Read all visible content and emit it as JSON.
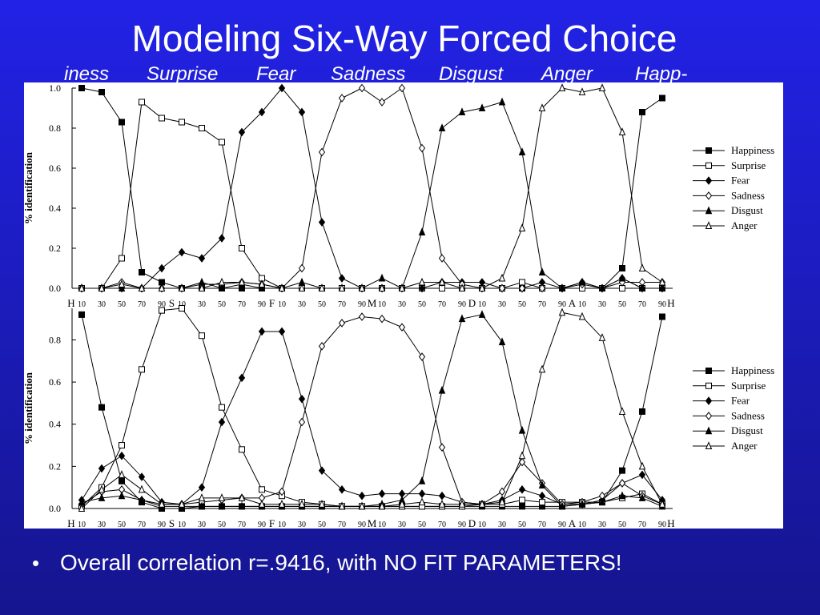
{
  "slide_title": "Modeling Six-Way Forced Choice",
  "header_labels": [
    "iness",
    "Surprise",
    "Fear",
    "Sadness",
    "Disgust",
    "Anger",
    "Happ-"
  ],
  "bullet": "Overall correlation r=.9416, with NO FIT PARAMETERS!",
  "chart_data": [
    {
      "type": "line",
      "y_label": "% identification",
      "categories": [
        "10",
        "30",
        "50",
        "70",
        "90",
        "10",
        "30",
        "50",
        "70",
        "90",
        "10",
        "30",
        "50",
        "70",
        "90",
        "10",
        "30",
        "50",
        "70",
        "90",
        "10",
        "30",
        "50",
        "70",
        "90",
        "10",
        "30",
        "50",
        "70",
        "90"
      ],
      "boundary_labels": [
        "H",
        "S",
        "F",
        "M",
        "D",
        "A",
        "H"
      ],
      "ylim": [
        0,
        1
      ],
      "yticks": [
        {
          "value": 0,
          "label": "0.0"
        },
        {
          "value": 0.2,
          "label": "0.2"
        },
        {
          "value": 0.4,
          "label": "0.4"
        },
        {
          "value": 0.6,
          "label": "0.6"
        },
        {
          "value": 0.8,
          "label": "0.8"
        },
        {
          "value": 1,
          "label": "1.0"
        }
      ],
      "series": [
        {
          "name": "Happiness",
          "color": "#000000",
          "marker": "filled-square",
          "values": [
            1,
            0.98,
            0.83,
            0.08,
            0.03,
            0,
            0,
            0,
            0,
            0,
            0,
            0,
            0,
            0,
            0,
            0,
            0,
            0,
            0,
            0,
            0,
            0,
            0,
            0,
            0,
            0,
            0,
            0.1,
            0.88,
            0.95
          ]
        },
        {
          "name": "Surprise",
          "color": "#000000",
          "marker": "open-square",
          "values": [
            0,
            0,
            0.15,
            0.93,
            0.85,
            0.83,
            0.8,
            0.73,
            0.2,
            0.05,
            0,
            0,
            0,
            0,
            0,
            0,
            0,
            0,
            0,
            0,
            0,
            0,
            0.03,
            0,
            0,
            0,
            0,
            0,
            0,
            0
          ]
        },
        {
          "name": "Fear",
          "color": "#000000",
          "marker": "filled-diamond",
          "values": [
            0,
            0,
            0,
            0,
            0.1,
            0.18,
            0.15,
            0.25,
            0.78,
            0.88,
            1,
            0.88,
            0.33,
            0.05,
            0,
            0,
            0,
            0,
            0.03,
            0.03,
            0.03,
            0,
            0,
            0.03,
            0,
            0.03,
            0,
            0.05,
            0,
            0
          ]
        },
        {
          "name": "Sadness",
          "color": "#000000",
          "marker": "open-diamond",
          "values": [
            0,
            0,
            0.03,
            0,
            0,
            0,
            0.02,
            0.02,
            0.03,
            0.02,
            0,
            0.1,
            0.68,
            0.95,
            1,
            0.93,
            1,
            0.7,
            0.15,
            0.02,
            0,
            0,
            0,
            0,
            0,
            0.02,
            0,
            0.03,
            0.03,
            0.03
          ]
        },
        {
          "name": "Disgust",
          "color": "#000000",
          "marker": "filled-triangle",
          "values": [
            0,
            0,
            0,
            0,
            0,
            0,
            0.03,
            0,
            0.02,
            0,
            0,
            0.03,
            0,
            0,
            0,
            0.05,
            0,
            0.28,
            0.8,
            0.88,
            0.9,
            0.93,
            0.68,
            0.08,
            0,
            0.03,
            0,
            0.05,
            0,
            0
          ]
        },
        {
          "name": "Anger",
          "color": "#000000",
          "marker": "open-triangle",
          "values": [
            0,
            0,
            0.02,
            0,
            0,
            0,
            0,
            0.03,
            0.03,
            0.02,
            0,
            0,
            0,
            0,
            0,
            0,
            0,
            0.03,
            0.03,
            0,
            0,
            0.05,
            0.3,
            0.9,
            1,
            0.98,
            1,
            0.78,
            0.1,
            0.03
          ]
        }
      ]
    },
    {
      "type": "line",
      "y_label": "% identification",
      "categories": [
        "10",
        "30",
        "50",
        "70",
        "90",
        "10",
        "30",
        "50",
        "70",
        "90",
        "10",
        "30",
        "50",
        "70",
        "90",
        "10",
        "30",
        "50",
        "70",
        "90",
        "10",
        "30",
        "50",
        "70",
        "90",
        "10",
        "30",
        "50",
        "70",
        "90"
      ],
      "boundary_labels": [
        "H",
        "S",
        "F",
        "M",
        "D",
        "A",
        "H"
      ],
      "ylim": [
        0,
        0.95
      ],
      "yticks": [
        {
          "value": 0,
          "label": "0.0"
        },
        {
          "value": 0.2,
          "label": "0.2"
        },
        {
          "value": 0.4,
          "label": "0.4"
        },
        {
          "value": 0.6,
          "label": "0.6"
        },
        {
          "value": 0.8,
          "label": "0.8"
        }
      ],
      "series": [
        {
          "name": "Happiness",
          "color": "#000000",
          "marker": "filled-square",
          "values": [
            0.92,
            0.48,
            0.13,
            0.03,
            0,
            0,
            0.01,
            0.01,
            0.01,
            0.01,
            0.01,
            0.01,
            0.01,
            0.01,
            0.01,
            0.01,
            0.01,
            0.01,
            0.01,
            0.01,
            0.01,
            0.01,
            0.01,
            0.01,
            0.01,
            0.02,
            0.03,
            0.18,
            0.46,
            0.91
          ]
        },
        {
          "name": "Surprise",
          "color": "#000000",
          "marker": "open-square",
          "values": [
            0.01,
            0.1,
            0.3,
            0.66,
            0.94,
            0.95,
            0.82,
            0.48,
            0.28,
            0.09,
            0.06,
            0.03,
            0.02,
            0.01,
            0.01,
            0.01,
            0.01,
            0.01,
            0.01,
            0.01,
            0.02,
            0.02,
            0.04,
            0.03,
            0.03,
            0.03,
            0.03,
            0.05,
            0.07,
            0.02
          ]
        },
        {
          "name": "Fear",
          "color": "#000000",
          "marker": "filled-diamond",
          "values": [
            0.04,
            0.19,
            0.25,
            0.15,
            0.03,
            0.02,
            0.1,
            0.41,
            0.62,
            0.84,
            0.84,
            0.52,
            0.18,
            0.09,
            0.06,
            0.07,
            0.07,
            0.07,
            0.06,
            0.03,
            0.02,
            0.04,
            0.09,
            0.06,
            0.02,
            0.02,
            0.04,
            0.12,
            0.16,
            0.04
          ]
        },
        {
          "name": "Sadness",
          "color": "#000000",
          "marker": "open-diamond",
          "values": [
            0.02,
            0.08,
            0.09,
            0.04,
            0.02,
            0.02,
            0.03,
            0.04,
            0.05,
            0.05,
            0.08,
            0.41,
            0.77,
            0.88,
            0.91,
            0.9,
            0.86,
            0.72,
            0.29,
            0.03,
            0.02,
            0.08,
            0.22,
            0.12,
            0.02,
            0.03,
            0.06,
            0.12,
            0.06,
            0.02
          ]
        },
        {
          "name": "Disgust",
          "color": "#000000",
          "marker": "filled-triangle",
          "values": [
            0.03,
            0.05,
            0.06,
            0.04,
            0.01,
            0.01,
            0.01,
            0.01,
            0.01,
            0.01,
            0.01,
            0.01,
            0.01,
            0.01,
            0.01,
            0.02,
            0.04,
            0.13,
            0.56,
            0.9,
            0.92,
            0.79,
            0.37,
            0.11,
            0.01,
            0.02,
            0.03,
            0.06,
            0.05,
            0.01
          ]
        },
        {
          "name": "Anger",
          "color": "#000000",
          "marker": "open-triangle",
          "values": [
            0,
            0.09,
            0.16,
            0.09,
            0.02,
            0.02,
            0.05,
            0.05,
            0.05,
            0.02,
            0.02,
            0.02,
            0.02,
            0.01,
            0.01,
            0.01,
            0.02,
            0.03,
            0.02,
            0.02,
            0.02,
            0.03,
            0.25,
            0.66,
            0.93,
            0.91,
            0.81,
            0.46,
            0.2,
            0.02
          ]
        }
      ]
    }
  ]
}
